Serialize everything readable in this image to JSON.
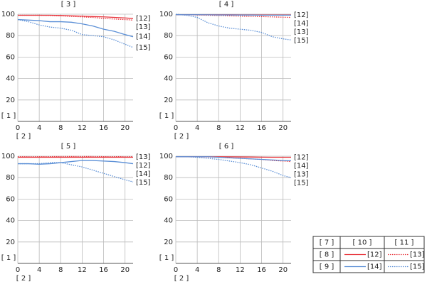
{
  "chart_data": [
    {
      "type": "line",
      "title": "[ 3 ]",
      "xlabel": "[ 2 ]",
      "ylabel": "[ 1 ]",
      "x": [
        0,
        2,
        4,
        6,
        8,
        10,
        12,
        14,
        16,
        18,
        20,
        21.5
      ],
      "xlim": [
        0,
        21.5
      ],
      "xticks": [
        0,
        4,
        8,
        12,
        16,
        20
      ],
      "ylim": [
        0,
        100
      ],
      "yticks": [
        20,
        40,
        60,
        80,
        100
      ],
      "grid": true,
      "series": [
        {
          "name": "[12]",
          "color": "#e8343c",
          "style": "solid",
          "values": [
            99,
            99,
            99,
            99,
            98.8,
            98.5,
            98.2,
            97.8,
            97.5,
            97,
            96.5,
            96
          ]
        },
        {
          "name": "[13]",
          "color": "#e8343c",
          "style": "dotted",
          "values": [
            99,
            99,
            99,
            98.8,
            98.5,
            98,
            97.5,
            97,
            96,
            95.5,
            95,
            94.5
          ]
        },
        {
          "name": "[14]",
          "color": "#5b8fd6",
          "style": "solid",
          "values": [
            95,
            94.5,
            94,
            93,
            93,
            92.5,
            91,
            89,
            86,
            84,
            81,
            79
          ]
        },
        {
          "name": "[15]",
          "color": "#5b8fd6",
          "style": "dotted",
          "values": [
            95,
            93,
            90,
            88,
            87,
            85,
            81,
            80,
            79,
            76,
            72,
            69
          ]
        }
      ]
    },
    {
      "type": "line",
      "title": "[ 4 ]",
      "xlabel": "[ 2 ]",
      "ylabel": "[ 1 ]",
      "x": [
        0,
        2,
        4,
        6,
        8,
        10,
        12,
        14,
        16,
        18,
        20,
        21.5
      ],
      "xlim": [
        0,
        21.5
      ],
      "xticks": [
        0,
        4,
        8,
        12,
        16,
        20
      ],
      "ylim": [
        0,
        100
      ],
      "yticks": [
        20,
        40,
        60,
        80,
        100
      ],
      "grid": true,
      "series": [
        {
          "name": "[12]",
          "color": "#e8343c",
          "style": "solid",
          "values": [
            99.5,
            99.5,
            99.5,
            99.5,
            99.5,
            99.5,
            99.4,
            99.4,
            99.3,
            99.3,
            99.3,
            99.3
          ]
        },
        {
          "name": "[13]",
          "color": "#e8343c",
          "style": "dotted",
          "values": [
            99.5,
            99.5,
            99.3,
            99,
            98.8,
            98.5,
            98.2,
            98,
            97.8,
            97.5,
            97.2,
            97
          ]
        },
        {
          "name": "[14]",
          "color": "#5b8fd6",
          "style": "solid",
          "values": [
            99.5,
            99.5,
            99.5,
            99.4,
            99.3,
            99.3,
            99.2,
            99.2,
            99.1,
            99.1,
            99.1,
            99.1
          ]
        },
        {
          "name": "[15]",
          "color": "#5b8fd6",
          "style": "dotted",
          "values": [
            100,
            99,
            97,
            92,
            89,
            87,
            86,
            85,
            83,
            79,
            77,
            76
          ]
        }
      ]
    },
    {
      "type": "line",
      "title": "[ 5 ]",
      "xlabel": "[ 2 ]",
      "ylabel": "[ 1 ]",
      "x": [
        0,
        2,
        4,
        6,
        8,
        10,
        12,
        14,
        16,
        18,
        20,
        21.5
      ],
      "xlim": [
        0,
        21.5
      ],
      "xticks": [
        0,
        4,
        8,
        12,
        16,
        20
      ],
      "ylim": [
        0,
        100
      ],
      "yticks": [
        20,
        40,
        60,
        80,
        100
      ],
      "grid": true,
      "series": [
        {
          "name": "[12]",
          "color": "#e8343c",
          "style": "solid",
          "values": [
            99,
            99,
            99,
            99,
            99,
            99,
            99,
            99,
            99,
            99,
            99,
            99
          ]
        },
        {
          "name": "[13]",
          "color": "#e8343c",
          "style": "dotted",
          "values": [
            99.5,
            99.5,
            99.5,
            99.6,
            99.7,
            99.7,
            99.7,
            99.7,
            99.6,
            99.6,
            99.5,
            99.5
          ]
        },
        {
          "name": "[14]",
          "color": "#5b8fd6",
          "style": "solid",
          "values": [
            93,
            93,
            92.5,
            93,
            94,
            95,
            96,
            96,
            95.5,
            95,
            94,
            93
          ]
        },
        {
          "name": "[15]",
          "color": "#5b8fd6",
          "style": "dotted",
          "values": [
            93,
            93,
            93,
            94,
            94,
            92,
            90,
            87,
            84,
            81,
            78,
            76
          ]
        }
      ]
    },
    {
      "type": "line",
      "title": "[ 6 ]",
      "xlabel": "[ 2 ]",
      "ylabel": "[ 1 ]",
      "x": [
        0,
        2,
        4,
        6,
        8,
        10,
        12,
        14,
        16,
        18,
        20,
        21.5
      ],
      "xlim": [
        0,
        21.5
      ],
      "xticks": [
        0,
        4,
        8,
        12,
        16,
        20
      ],
      "ylim": [
        0,
        100
      ],
      "yticks": [
        20,
        40,
        60,
        80,
        100
      ],
      "grid": true,
      "series": [
        {
          "name": "[12]",
          "color": "#e8343c",
          "style": "solid",
          "values": [
            99.5,
            99.5,
            99.5,
            99.5,
            99.5,
            99.4,
            99.3,
            99.2,
            99.1,
            99,
            99,
            99
          ]
        },
        {
          "name": "[13]",
          "color": "#e8343c",
          "style": "dotted",
          "values": [
            99.5,
            99.5,
            99.5,
            99.3,
            99,
            98.5,
            98,
            97.5,
            97,
            96,
            95.5,
            95
          ]
        },
        {
          "name": "[14]",
          "color": "#5b8fd6",
          "style": "solid",
          "values": [
            99.5,
            99.5,
            99.5,
            99.5,
            99,
            98.5,
            98,
            97.5,
            97,
            96.5,
            96,
            95.8
          ]
        },
        {
          "name": "[15]",
          "color": "#5b8fd6",
          "style": "dotted",
          "values": [
            99.5,
            99.5,
            99,
            98,
            97,
            95.5,
            94,
            92,
            89,
            86,
            82,
            80
          ]
        }
      ]
    }
  ],
  "legend_table": {
    "header": [
      "[ 7 ]",
      "[ 10 ]",
      "[ 11 ]"
    ],
    "rows": [
      "[ 8 ]",
      "[ 9 ]"
    ]
  }
}
